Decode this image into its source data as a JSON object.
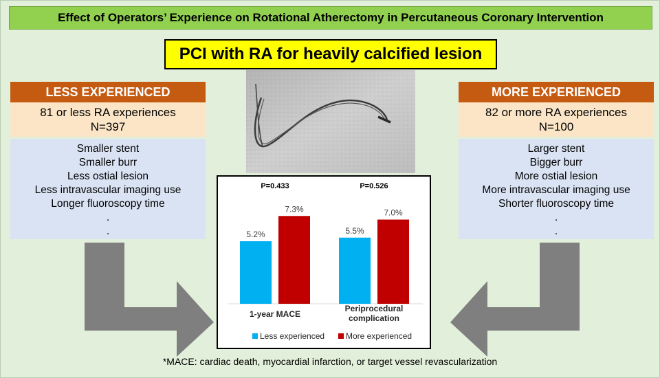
{
  "title": "Effect of Operators’ Experience on Rotational Atherectomy in Percutaneous Coronary Intervention",
  "banner": "PCI with RA for heavily calcified lesion",
  "left_panel": {
    "header": "LESS EXPERIENCED",
    "count_line1": "81 or less RA experiences",
    "count_line2": "N=397",
    "items": [
      "Smaller stent",
      "Smaller burr",
      "Less ostial lesion",
      "Less intravascular imaging use",
      "Longer fluoroscopy time",
      ".",
      "."
    ]
  },
  "right_panel": {
    "header": "MORE EXPERIENCED",
    "count_line1": "82 or more RA experiences",
    "count_line2": "N=100",
    "items": [
      "Larger stent",
      "Bigger burr",
      "More ostial lesion",
      "More intravascular imaging use",
      "Shorter fluoroscopy time",
      ".",
      "."
    ]
  },
  "colors": {
    "less": "#00b0f0",
    "more": "#c00000",
    "header_orange": "#c55a11",
    "title_green": "#92d050",
    "banner_yellow": "#ffff00"
  },
  "chart_data": {
    "type": "bar",
    "categories": [
      "1-year MACE",
      "Periprocedural complication"
    ],
    "category_lines": [
      [
        "1-year MACE"
      ],
      [
        "Periprocedural",
        "complication"
      ]
    ],
    "p_values": [
      "P=0.433",
      "P=0.526"
    ],
    "series": [
      {
        "name": "Less experienced",
        "values": [
          5.2,
          5.5
        ],
        "labels": [
          "5.2%",
          "5.5%"
        ]
      },
      {
        "name": "More experienced",
        "values": [
          7.3,
          7.0
        ],
        "labels": [
          "7.3%",
          "7.0%"
        ]
      }
    ],
    "ylim": [
      0,
      10
    ],
    "grid": false,
    "legend_position": "bottom"
  },
  "footnote": "*MACE: cardiac death, myocardial infarction, or target vessel revascularization"
}
